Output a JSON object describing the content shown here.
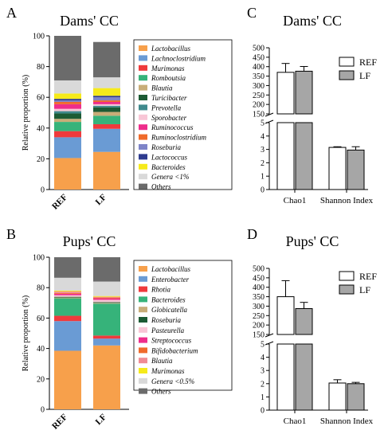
{
  "chart_data": [
    {
      "panel_letter": "A",
      "type": "bar",
      "stacked": true,
      "title": "Dams' CC",
      "ylabel": "Relative proportion (%)",
      "ylim": [
        0,
        100
      ],
      "yticks": [
        0,
        20,
        40,
        60,
        80,
        100
      ],
      "categories": [
        "REF",
        "LF"
      ],
      "series": [
        {
          "name": "Lactobacillus",
          "color": "#f7a04b",
          "values": [
            20.5,
            24.5
          ]
        },
        {
          "name": "Lachnoclostridium",
          "color": "#6a9bd4",
          "values": [
            13.5,
            15.0
          ]
        },
        {
          "name": "Murimonas",
          "color": "#ef3a3c",
          "values": [
            4.0,
            3.0
          ]
        },
        {
          "name": "Romboutsia",
          "color": "#36b37a",
          "values": [
            6.0,
            5.5
          ]
        },
        {
          "name": "Blautia",
          "color": "#c8ad78",
          "values": [
            2.0,
            2.5
          ]
        },
        {
          "name": "Turicibacter",
          "color": "#1c5b34",
          "values": [
            3.5,
            3.0
          ]
        },
        {
          "name": "Prevotella",
          "color": "#3f8a8d",
          "values": [
            1.5,
            1.0
          ]
        },
        {
          "name": "Sporobacter",
          "color": "#f8c6d6",
          "values": [
            1.5,
            1.0
          ]
        },
        {
          "name": "Ruminococcus",
          "color": "#ee2d8b",
          "values": [
            3.0,
            1.5
          ]
        },
        {
          "name": "Ruminoclostridium",
          "color": "#f06a2b",
          "values": [
            1.5,
            1.0
          ]
        },
        {
          "name": "Roseburia",
          "color": "#7e84c8",
          "values": [
            1.0,
            2.0
          ]
        },
        {
          "name": "Lactococcus",
          "color": "#2e3b8f",
          "values": [
            1.0,
            1.0
          ]
        },
        {
          "name": "Bacteroides",
          "color": "#f6ea1a",
          "values": [
            3.5,
            5.0
          ]
        },
        {
          "name": "Genera <1%",
          "color": "#d9d9d9",
          "values": [
            8.5,
            7.0
          ]
        },
        {
          "name": "Others",
          "color": "#6b6b6b",
          "values": [
            29.0,
            23.0
          ]
        }
      ]
    },
    {
      "panel_letter": "B",
      "type": "bar",
      "stacked": true,
      "title": "Pups' CC",
      "ylabel": "Relative proportion (%)",
      "ylim": [
        0,
        100
      ],
      "yticks": [
        0,
        20,
        40,
        60,
        80,
        100
      ],
      "categories": [
        "REF",
        "LF"
      ],
      "series": [
        {
          "name": "Lactobacillus",
          "color": "#f7a04b",
          "values": [
            38.5,
            42.0
          ]
        },
        {
          "name": "Enterobacter",
          "color": "#6a9bd4",
          "values": [
            19.5,
            4.5
          ]
        },
        {
          "name": "Rhotia",
          "color": "#ef3a3c",
          "values": [
            3.5,
            2.0
          ]
        },
        {
          "name": "Bacteroides",
          "color": "#36b37a",
          "values": [
            11.5,
            21.0
          ]
        },
        {
          "name": "Globicatella",
          "color": "#c8ad78",
          "values": [
            0.5,
            0.5
          ]
        },
        {
          "name": "Roseburia",
          "color": "#1c5b34",
          "values": [
            0.5,
            0.5
          ]
        },
        {
          "name": "Pasteurella",
          "color": "#f8c6d6",
          "values": [
            1.0,
            1.5
          ]
        },
        {
          "name": "Streptococcus",
          "color": "#ee2d8b",
          "values": [
            1.0,
            1.0
          ]
        },
        {
          "name": "Bifidobacterium",
          "color": "#f06a2b",
          "values": [
            0.5,
            0.5
          ]
        },
        {
          "name": "Blautia",
          "color": "#f08c94",
          "values": [
            1.0,
            0.5
          ]
        },
        {
          "name": "Murimonas",
          "color": "#f6ea1a",
          "values": [
            0.5,
            0.5
          ]
        },
        {
          "name": "Genera <0.5%",
          "color": "#d9d9d9",
          "values": [
            8.5,
            9.5
          ]
        },
        {
          "name": "Others",
          "color": "#6b6b6b",
          "values": [
            13.5,
            16.0
          ]
        }
      ]
    },
    {
      "panel_letter": "C",
      "type": "bar",
      "title": "Dams' CC",
      "categories": [
        "Chao1",
        "Shannon Index"
      ],
      "axis_upper": {
        "range": [
          150,
          500
        ],
        "ticks": [
          150,
          200,
          250,
          300,
          350,
          400,
          450,
          500
        ]
      },
      "axis_lower": {
        "range": [
          0,
          5
        ],
        "ticks": [
          0,
          1,
          2,
          3,
          4,
          5
        ]
      },
      "series": [
        {
          "name": "REF",
          "color": "#ffffff",
          "values": [
            370,
            3.15
          ],
          "errors": [
            47,
            0.05
          ]
        },
        {
          "name": "LF",
          "color": "#a6a6a6",
          "values": [
            376,
            2.95
          ],
          "errors": [
            25,
            0.25
          ]
        }
      ]
    },
    {
      "panel_letter": "D",
      "type": "bar",
      "title": "Pups' CC",
      "categories": [
        "Chao1",
        "Shannon Index"
      ],
      "axis_upper": {
        "range": [
          150,
          500
        ],
        "ticks": [
          150,
          200,
          250,
          300,
          350,
          400,
          450,
          500
        ]
      },
      "axis_lower": {
        "range": [
          0,
          5
        ],
        "ticks": [
          0,
          1,
          2,
          3,
          4,
          5
        ]
      },
      "series": [
        {
          "name": "REF",
          "color": "#ffffff",
          "values": [
            350,
            2.05
          ],
          "errors": [
            85,
            0.25
          ]
        },
        {
          "name": "LF",
          "color": "#a6a6a6",
          "values": [
            287,
            2.0
          ],
          "errors": [
            33,
            0.1
          ]
        }
      ]
    }
  ]
}
